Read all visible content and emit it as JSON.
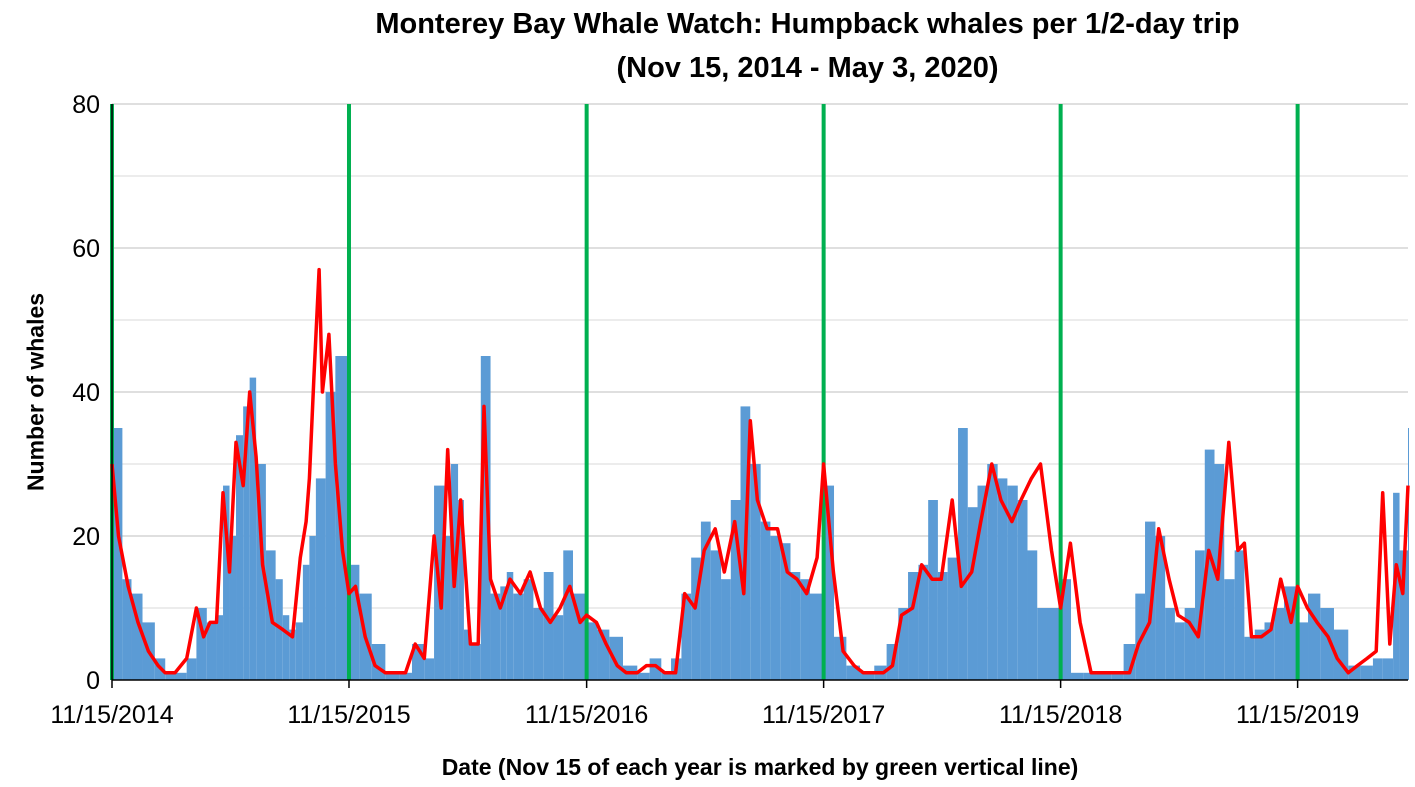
{
  "chart_data": {
    "type": "bar",
    "title": "Monterey Bay Whale Watch:  Humpback whales per 1/2-day trip",
    "subtitle": "(Nov 15, 2014 - May 3, 2020)",
    "xlabel": "Date (Nov 15 of each year is marked by green vertical line)",
    "ylabel": "Number of whales",
    "x_range": [
      "2014-11-15",
      "2020-05-03"
    ],
    "ylim": [
      0,
      80
    ],
    "y_ticks": [
      0,
      20,
      40,
      60,
      80
    ],
    "x_ticks": [
      "11/15/2014",
      "11/15/2015",
      "11/15/2016",
      "11/15/2017",
      "11/15/2018",
      "11/15/2019"
    ],
    "grid": true,
    "bar_color": "#5b9bd5",
    "smooth_color": "#ff0000",
    "marker_color": "#00b050",
    "year_markers": [
      "2014-11-15",
      "2015-11-15",
      "2016-11-15",
      "2017-11-15",
      "2018-11-15",
      "2019-11-15"
    ],
    "series": [
      {
        "kind": "daily_bars",
        "x": [
          "2014-11-15",
          "2014-12-01",
          "2014-12-15",
          "2015-01-01",
          "2015-01-20",
          "2015-02-05",
          "2015-02-20",
          "2015-03-10",
          "2015-03-25",
          "2015-04-10",
          "2015-04-25",
          "2015-05-05",
          "2015-05-15",
          "2015-05-25",
          "2015-06-05",
          "2015-06-15",
          "2015-06-25",
          "2015-07-10",
          "2015-07-25",
          "2015-08-05",
          "2015-08-15",
          "2015-08-25",
          "2015-09-05",
          "2015-09-15",
          "2015-09-25",
          "2015-10-10",
          "2015-10-25",
          "2015-11-15",
          "2015-12-01",
          "2015-12-20",
          "2016-01-10",
          "2016-02-01",
          "2016-02-20",
          "2016-03-10",
          "2016-03-25",
          "2016-04-10",
          "2016-04-20",
          "2016-05-01",
          "2016-05-10",
          "2016-05-20",
          "2016-06-05",
          "2016-06-20",
          "2016-07-05",
          "2016-07-15",
          "2016-07-25",
          "2016-08-10",
          "2016-08-25",
          "2016-09-10",
          "2016-09-25",
          "2016-10-10",
          "2016-10-25",
          "2016-11-15",
          "2016-12-01",
          "2016-12-20",
          "2017-01-10",
          "2017-02-01",
          "2017-02-20",
          "2017-03-10",
          "2017-03-25",
          "2017-04-10",
          "2017-04-25",
          "2017-05-10",
          "2017-05-25",
          "2017-06-10",
          "2017-06-25",
          "2017-07-10",
          "2017-07-25",
          "2017-08-10",
          "2017-08-25",
          "2017-09-10",
          "2017-09-25",
          "2017-10-10",
          "2017-10-25",
          "2017-11-15",
          "2017-12-01",
          "2017-12-20",
          "2018-01-10",
          "2018-02-01",
          "2018-02-20",
          "2018-03-10",
          "2018-03-25",
          "2018-04-10",
          "2018-04-25",
          "2018-05-10",
          "2018-05-25",
          "2018-06-10",
          "2018-06-25",
          "2018-07-10",
          "2018-07-25",
          "2018-08-10",
          "2018-08-25",
          "2018-09-10",
          "2018-09-25",
          "2018-10-10",
          "2018-10-25",
          "2018-11-15",
          "2018-12-01",
          "2018-12-20",
          "2019-01-10",
          "2019-02-01",
          "2019-02-20",
          "2019-03-10",
          "2019-03-25",
          "2019-04-10",
          "2019-04-25",
          "2019-05-10",
          "2019-05-25",
          "2019-06-10",
          "2019-06-25",
          "2019-07-10",
          "2019-07-25",
          "2019-08-10",
          "2019-08-25",
          "2019-09-10",
          "2019-09-25",
          "2019-10-10",
          "2019-10-25",
          "2019-11-15",
          "2019-12-01",
          "2019-12-20",
          "2020-01-10",
          "2020-02-01",
          "2020-02-20",
          "2020-03-10",
          "2020-03-25",
          "2020-04-10",
          "2020-04-20",
          "2020-05-03"
        ],
        "values": [
          35,
          14,
          12,
          8,
          3,
          1,
          1,
          3,
          10,
          8,
          9,
          27,
          20,
          34,
          38,
          42,
          30,
          18,
          14,
          9,
          7,
          8,
          16,
          20,
          28,
          40,
          45,
          16,
          12,
          5,
          1,
          1,
          5,
          3,
          27,
          20,
          30,
          25,
          7,
          5,
          45,
          12,
          13,
          15,
          12,
          14,
          10,
          15,
          9,
          18,
          12,
          8,
          7,
          6,
          2,
          1,
          3,
          1,
          3,
          12,
          17,
          22,
          18,
          14,
          25,
          38,
          30,
          22,
          20,
          19,
          15,
          14,
          12,
          27,
          6,
          2,
          1,
          2,
          5,
          10,
          15,
          16,
          25,
          15,
          17,
          35,
          24,
          27,
          30,
          28,
          27,
          25,
          18,
          10,
          10,
          14,
          1,
          1,
          1,
          1,
          5,
          12,
          22,
          20,
          10,
          8,
          10,
          18,
          32,
          30,
          14,
          18,
          6,
          7,
          8,
          10,
          13,
          8,
          12,
          10,
          7,
          2,
          2,
          3,
          3,
          26,
          18,
          35
        ]
      },
      {
        "kind": "smoothed_line",
        "x": [
          "2014-11-15",
          "2014-11-25",
          "2014-12-10",
          "2014-12-25",
          "2015-01-10",
          "2015-01-25",
          "2015-02-05",
          "2015-02-20",
          "2015-03-10",
          "2015-03-25",
          "2015-04-05",
          "2015-04-15",
          "2015-04-25",
          "2015-05-05",
          "2015-05-15",
          "2015-05-25",
          "2015-06-05",
          "2015-06-15",
          "2015-06-25",
          "2015-07-05",
          "2015-07-20",
          "2015-08-05",
          "2015-08-20",
          "2015-09-01",
          "2015-09-10",
          "2015-09-15",
          "2015-09-22",
          "2015-09-30",
          "2015-10-05",
          "2015-10-15",
          "2015-10-25",
          "2015-11-05",
          "2015-11-15",
          "2015-11-25",
          "2015-12-10",
          "2015-12-25",
          "2016-01-10",
          "2016-01-25",
          "2016-02-10",
          "2016-02-25",
          "2016-03-10",
          "2016-03-25",
          "2016-04-05",
          "2016-04-15",
          "2016-04-25",
          "2016-05-05",
          "2016-05-20",
          "2016-06-01",
          "2016-06-10",
          "2016-06-20",
          "2016-07-05",
          "2016-07-20",
          "2016-08-05",
          "2016-08-20",
          "2016-09-05",
          "2016-09-20",
          "2016-10-05",
          "2016-10-20",
          "2016-11-05",
          "2016-11-15",
          "2016-11-30",
          "2016-12-15",
          "2017-01-01",
          "2017-01-15",
          "2017-02-01",
          "2017-02-15",
          "2017-03-01",
          "2017-03-15",
          "2017-04-01",
          "2017-04-15",
          "2017-05-01",
          "2017-05-15",
          "2017-06-01",
          "2017-06-15",
          "2017-07-01",
          "2017-07-15",
          "2017-07-25",
          "2017-08-05",
          "2017-08-20",
          "2017-09-05",
          "2017-09-20",
          "2017-10-05",
          "2017-10-20",
          "2017-11-05",
          "2017-11-15",
          "2017-11-30",
          "2017-12-15",
          "2018-01-01",
          "2018-01-15",
          "2018-02-01",
          "2018-02-15",
          "2018-03-01",
          "2018-03-15",
          "2018-04-01",
          "2018-04-15",
          "2018-05-01",
          "2018-05-15",
          "2018-06-01",
          "2018-06-15",
          "2018-07-01",
          "2018-07-15",
          "2018-08-01",
          "2018-08-15",
          "2018-09-01",
          "2018-09-15",
          "2018-10-01",
          "2018-10-15",
          "2018-11-01",
          "2018-11-15",
          "2018-11-30",
          "2018-12-15",
          "2019-01-01",
          "2019-01-15",
          "2019-02-01",
          "2019-02-15",
          "2019-03-01",
          "2019-03-15",
          "2019-04-01",
          "2019-04-15",
          "2019-05-01",
          "2019-05-15",
          "2019-06-01",
          "2019-06-15",
          "2019-07-01",
          "2019-07-15",
          "2019-08-01",
          "2019-08-15",
          "2019-08-25",
          "2019-09-05",
          "2019-09-20",
          "2019-10-05",
          "2019-10-20",
          "2019-11-05",
          "2019-11-15",
          "2019-11-30",
          "2019-12-15",
          "2020-01-01",
          "2020-01-15",
          "2020-02-01",
          "2020-02-15",
          "2020-03-01",
          "2020-03-15",
          "2020-03-25",
          "2020-04-05",
          "2020-04-15",
          "2020-04-25",
          "2020-05-03"
        ],
        "values": [
          30,
          20,
          13,
          8,
          4,
          2,
          1,
          1,
          3,
          10,
          6,
          8,
          8,
          26,
          15,
          33,
          27,
          40,
          31,
          16,
          8,
          7,
          6,
          17,
          22,
          28,
          42,
          57,
          40,
          48,
          30,
          18,
          12,
          13,
          6,
          2,
          1,
          1,
          1,
          5,
          3,
          20,
          10,
          32,
          13,
          25,
          5,
          5,
          38,
          14,
          10,
          14,
          12,
          15,
          10,
          8,
          10,
          13,
          8,
          9,
          8,
          5,
          2,
          1,
          1,
          2,
          2,
          1,
          1,
          12,
          10,
          18,
          21,
          15,
          22,
          12,
          36,
          25,
          21,
          21,
          15,
          14,
          12,
          17,
          30,
          15,
          4,
          2,
          1,
          1,
          1,
          2,
          9,
          10,
          16,
          14,
          14,
          25,
          13,
          15,
          22,
          30,
          25,
          22,
          25,
          28,
          30,
          18,
          10,
          19,
          8,
          1,
          1,
          1,
          1,
          1,
          5,
          8,
          21,
          14,
          9,
          8,
          6,
          18,
          14,
          33,
          18,
          19,
          6,
          6,
          7,
          14,
          8,
          13,
          10,
          8,
          6,
          3,
          1,
          2,
          3,
          4,
          26,
          5,
          16,
          12,
          27
        ]
      }
    ]
  }
}
